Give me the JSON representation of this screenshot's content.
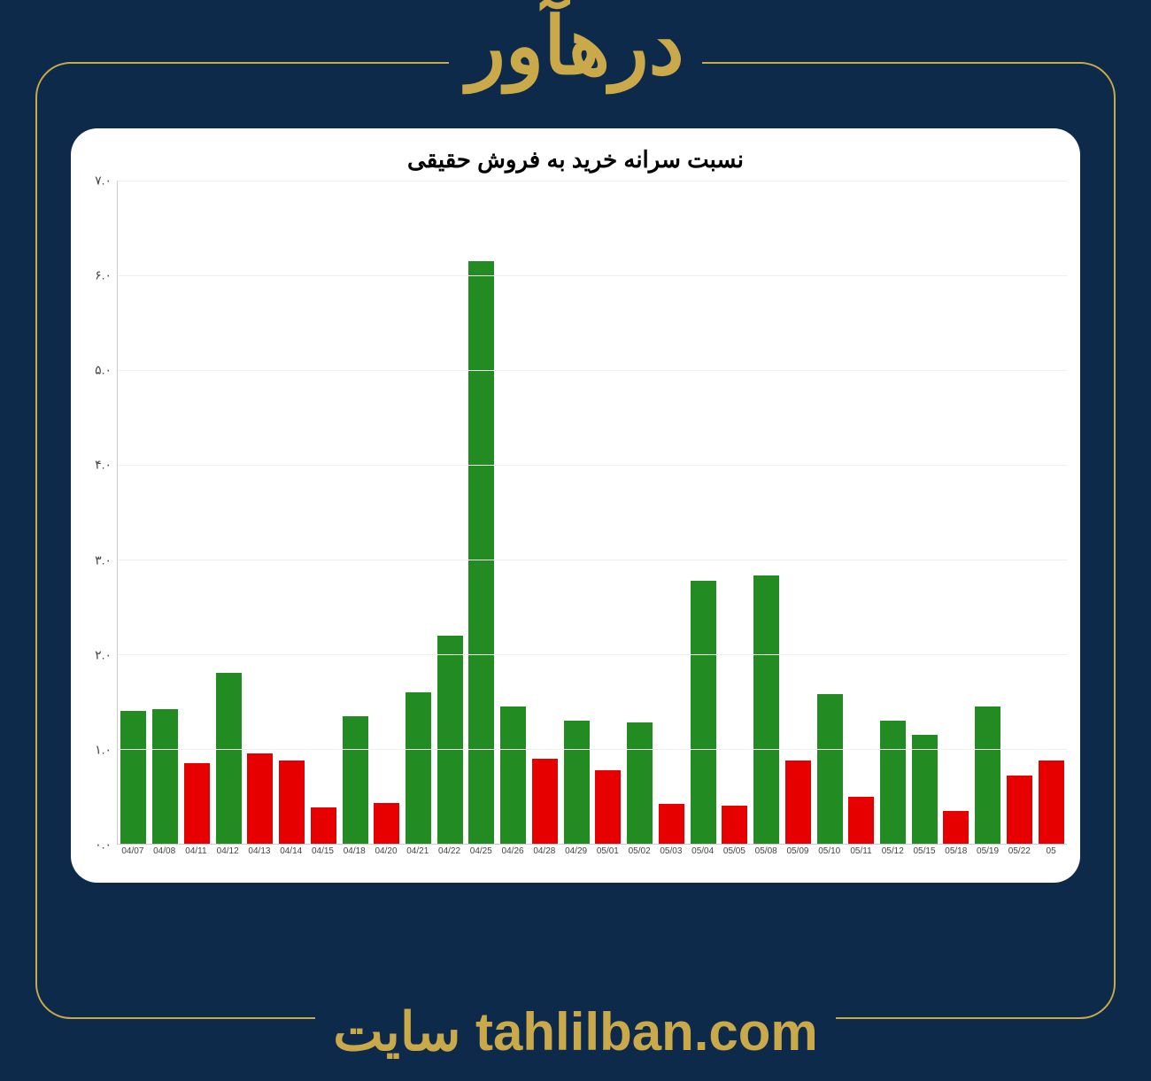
{
  "header_text": "درهآور",
  "footer_text": "سایت tahlilban.com",
  "background_color": "#0e2a4a",
  "accent_color": "#c9a94a",
  "chart": {
    "type": "bar",
    "title": "نسبت سرانه خرید به فروش حقیقی",
    "title_fontsize": 26,
    "title_color": "#000000",
    "background_color": "#ffffff",
    "grid_color": "#eeeeee",
    "axis_color": "#cccccc",
    "x_label_fontsize": 10,
    "y_label_fontsize": 14,
    "y_label_color": "#444444",
    "ylim": [
      0,
      7
    ],
    "ytick_step": 1,
    "y_tick_labels": [
      "۰.۰",
      "۱.۰",
      "۲.۰",
      "۳.۰",
      "۴.۰",
      "۵.۰",
      "۶.۰",
      "۷.۰"
    ],
    "green_color": "#228b22",
    "red_color": "#e60000",
    "bar_width_ratio": 0.86,
    "categories": [
      "04/07",
      "04/08",
      "04/11",
      "04/12",
      "04/13",
      "04/14",
      "04/15",
      "04/18",
      "04/20",
      "04/21",
      "04/22",
      "04/25",
      "04/26",
      "04/28",
      "04/29",
      "05/01",
      "05/02",
      "05/03",
      "05/04",
      "05/05",
      "05/08",
      "05/09",
      "05/10",
      "05/11",
      "05/12",
      "05/15",
      "05/18",
      "05/19",
      "05/22",
      "05"
    ],
    "values": [
      1.4,
      1.42,
      0.85,
      1.8,
      0.95,
      0.88,
      0.38,
      1.35,
      0.43,
      1.6,
      2.2,
      6.15,
      1.45,
      0.9,
      1.3,
      0.78,
      1.28,
      0.42,
      2.78,
      0.4,
      2.83,
      0.88,
      1.58,
      0.5,
      1.3,
      1.15,
      0.35,
      1.45,
      0.72,
      0.88
    ],
    "colors": [
      "green",
      "green",
      "red",
      "green",
      "red",
      "red",
      "red",
      "green",
      "red",
      "green",
      "green",
      "green",
      "green",
      "red",
      "green",
      "red",
      "green",
      "red",
      "green",
      "red",
      "green",
      "red",
      "green",
      "red",
      "green",
      "green",
      "red",
      "green",
      "red",
      "red"
    ]
  }
}
